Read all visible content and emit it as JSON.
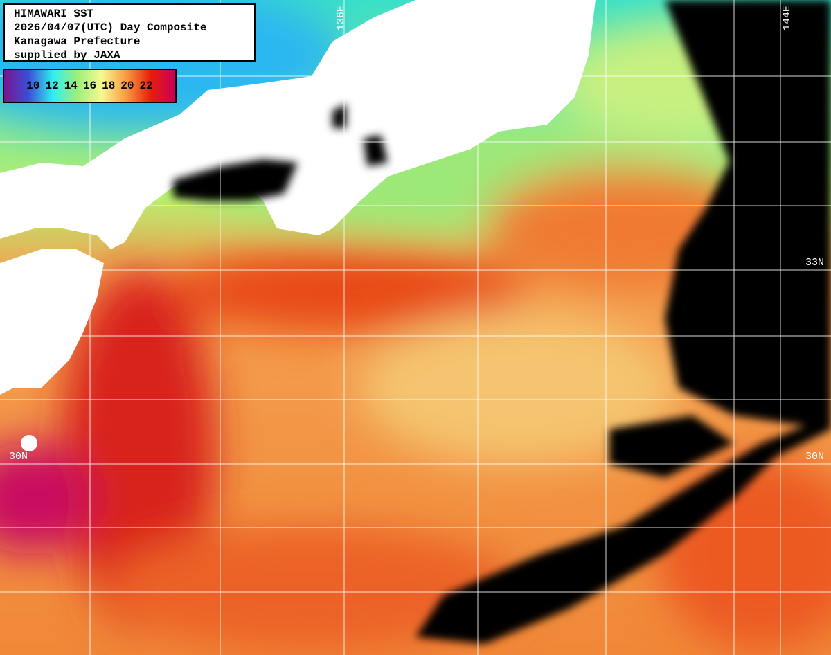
{
  "title": {
    "lines": [
      "HIMAWARI SST",
      "2026/04/07(UTC) Day Composite",
      "Kanagawa Prefecture",
      "supplied by JAXA"
    ]
  },
  "legend": {
    "ticks": [
      "10",
      "12",
      "14",
      "16",
      "18",
      "20",
      "22"
    ],
    "colors": [
      "#7a1490",
      "#3a4fd8",
      "#2ff0f0",
      "#9cf07a",
      "#f8f890",
      "#f89a40",
      "#e81e0a",
      "#c8005a"
    ]
  },
  "grid_labels": {
    "lon_136": "136E",
    "lon_144": "144E",
    "lat_33": "33N",
    "lat_30_left": "30N",
    "lat_30_right": "30N"
  },
  "map_colors": {
    "land": "#ffffff",
    "cloud": "#000000",
    "grid": "#ffffff",
    "warm": "#f07a30",
    "hot": "#d81a10",
    "cool": "#7ee88a",
    "cold": "#2fd8e8"
  }
}
